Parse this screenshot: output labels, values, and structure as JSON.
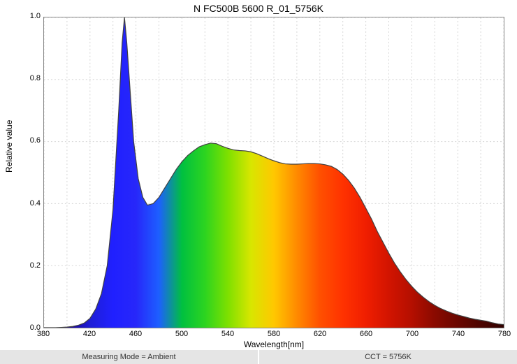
{
  "chart": {
    "type": "area",
    "title": "N FC500B 5600 R_01_5756K",
    "title_fontsize": 14,
    "xlabel": "Wavelength[nm]",
    "ylabel": "Relative value",
    "label_fontsize": 12,
    "tick_fontsize": 11,
    "xlim": [
      380,
      780
    ],
    "ylim": [
      0,
      1.0
    ],
    "xtick_step": 20,
    "ytick_step": 0.2,
    "xticks": [
      380,
      400,
      420,
      440,
      460,
      480,
      500,
      520,
      540,
      560,
      580,
      600,
      620,
      640,
      660,
      680,
      700,
      720,
      740,
      760,
      780
    ],
    "xtick_labels": [
      "380",
      "",
      "420",
      "",
      "460",
      "",
      "500",
      "",
      "540",
      "",
      "580",
      "",
      "620",
      "",
      "660",
      "",
      "700",
      "",
      "740",
      "",
      "780"
    ],
    "yticks": [
      0.0,
      0.2,
      0.4,
      0.6,
      0.8,
      1.0
    ],
    "background_color": "#ffffff",
    "grid_color": "#d6d6d6",
    "grid_dash": "2,3",
    "border_color": "#888888",
    "fill_gradient_stops": [
      {
        "x": 380,
        "color": "#000000"
      },
      {
        "x": 400,
        "color": "#1a008f"
      },
      {
        "x": 420,
        "color": "#1e1ed6"
      },
      {
        "x": 440,
        "color": "#2020ff"
      },
      {
        "x": 460,
        "color": "#2727fa"
      },
      {
        "x": 480,
        "color": "#1d5fff"
      },
      {
        "x": 500,
        "color": "#00c040"
      },
      {
        "x": 520,
        "color": "#2cd420"
      },
      {
        "x": 540,
        "color": "#7ee000"
      },
      {
        "x": 560,
        "color": "#d8e600"
      },
      {
        "x": 580,
        "color": "#ffc800"
      },
      {
        "x": 600,
        "color": "#ff8a00"
      },
      {
        "x": 620,
        "color": "#ff5000"
      },
      {
        "x": 640,
        "color": "#ff3200"
      },
      {
        "x": 660,
        "color": "#f01e00"
      },
      {
        "x": 680,
        "color": "#d21400"
      },
      {
        "x": 700,
        "color": "#b40f00"
      },
      {
        "x": 720,
        "color": "#8a0a00"
      },
      {
        "x": 740,
        "color": "#6a0700"
      },
      {
        "x": 760,
        "color": "#4c0400"
      },
      {
        "x": 780,
        "color": "#300200"
      }
    ],
    "line_color": "#404040",
    "line_width": 1.2,
    "series": [
      {
        "x": 380,
        "y": 0.0
      },
      {
        "x": 385,
        "y": 0.0
      },
      {
        "x": 390,
        "y": 0.0
      },
      {
        "x": 395,
        "y": 0.001
      },
      {
        "x": 400,
        "y": 0.002
      },
      {
        "x": 405,
        "y": 0.004
      },
      {
        "x": 410,
        "y": 0.008
      },
      {
        "x": 415,
        "y": 0.015
      },
      {
        "x": 420,
        "y": 0.03
      },
      {
        "x": 425,
        "y": 0.06
      },
      {
        "x": 430,
        "y": 0.11
      },
      {
        "x": 435,
        "y": 0.2
      },
      {
        "x": 440,
        "y": 0.38
      },
      {
        "x": 445,
        "y": 0.7
      },
      {
        "x": 448,
        "y": 0.92
      },
      {
        "x": 450,
        "y": 1.0
      },
      {
        "x": 452,
        "y": 0.92
      },
      {
        "x": 455,
        "y": 0.76
      },
      {
        "x": 458,
        "y": 0.6
      },
      {
        "x": 462,
        "y": 0.48
      },
      {
        "x": 466,
        "y": 0.42
      },
      {
        "x": 470,
        "y": 0.395
      },
      {
        "x": 475,
        "y": 0.4
      },
      {
        "x": 480,
        "y": 0.42
      },
      {
        "x": 485,
        "y": 0.45
      },
      {
        "x": 490,
        "y": 0.48
      },
      {
        "x": 495,
        "y": 0.51
      },
      {
        "x": 500,
        "y": 0.535
      },
      {
        "x": 505,
        "y": 0.555
      },
      {
        "x": 510,
        "y": 0.57
      },
      {
        "x": 515,
        "y": 0.583
      },
      {
        "x": 520,
        "y": 0.59
      },
      {
        "x": 525,
        "y": 0.595
      },
      {
        "x": 530,
        "y": 0.593
      },
      {
        "x": 535,
        "y": 0.585
      },
      {
        "x": 540,
        "y": 0.578
      },
      {
        "x": 545,
        "y": 0.573
      },
      {
        "x": 550,
        "y": 0.571
      },
      {
        "x": 555,
        "y": 0.57
      },
      {
        "x": 560,
        "y": 0.567
      },
      {
        "x": 565,
        "y": 0.561
      },
      {
        "x": 570,
        "y": 0.553
      },
      {
        "x": 575,
        "y": 0.545
      },
      {
        "x": 580,
        "y": 0.538
      },
      {
        "x": 585,
        "y": 0.532
      },
      {
        "x": 590,
        "y": 0.528
      },
      {
        "x": 595,
        "y": 0.527
      },
      {
        "x": 600,
        "y": 0.527
      },
      {
        "x": 605,
        "y": 0.528
      },
      {
        "x": 610,
        "y": 0.529
      },
      {
        "x": 615,
        "y": 0.529
      },
      {
        "x": 620,
        "y": 0.528
      },
      {
        "x": 625,
        "y": 0.525
      },
      {
        "x": 630,
        "y": 0.52
      },
      {
        "x": 635,
        "y": 0.51
      },
      {
        "x": 640,
        "y": 0.495
      },
      {
        "x": 645,
        "y": 0.475
      },
      {
        "x": 650,
        "y": 0.45
      },
      {
        "x": 655,
        "y": 0.42
      },
      {
        "x": 660,
        "y": 0.385
      },
      {
        "x": 665,
        "y": 0.35
      },
      {
        "x": 670,
        "y": 0.31
      },
      {
        "x": 675,
        "y": 0.275
      },
      {
        "x": 680,
        "y": 0.24
      },
      {
        "x": 685,
        "y": 0.208
      },
      {
        "x": 690,
        "y": 0.18
      },
      {
        "x": 695,
        "y": 0.155
      },
      {
        "x": 700,
        "y": 0.133
      },
      {
        "x": 705,
        "y": 0.114
      },
      {
        "x": 710,
        "y": 0.098
      },
      {
        "x": 715,
        "y": 0.084
      },
      {
        "x": 720,
        "y": 0.072
      },
      {
        "x": 725,
        "y": 0.062
      },
      {
        "x": 730,
        "y": 0.054
      },
      {
        "x": 735,
        "y": 0.047
      },
      {
        "x": 740,
        "y": 0.041
      },
      {
        "x": 745,
        "y": 0.036
      },
      {
        "x": 750,
        "y": 0.031
      },
      {
        "x": 755,
        "y": 0.027
      },
      {
        "x": 760,
        "y": 0.024
      },
      {
        "x": 765,
        "y": 0.021
      },
      {
        "x": 770,
        "y": 0.016
      },
      {
        "x": 775,
        "y": 0.012
      },
      {
        "x": 780,
        "y": 0.01
      }
    ]
  },
  "info": {
    "mode_label": "Measuring Mode = Ambient",
    "cct_label": "CCT = 5756K"
  }
}
